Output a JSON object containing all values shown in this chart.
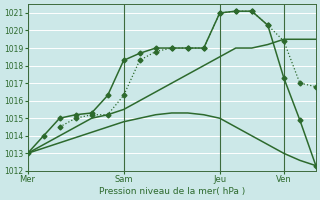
{
  "xlabel": "Pression niveau de la mer( hPa )",
  "bg_color": "#cce8e8",
  "grid_color": "#ffffff",
  "line_color": "#2d6a2d",
  "ylim": [
    1012,
    1021.5
  ],
  "ytick_min": 1012,
  "ytick_max": 1021,
  "day_labels": [
    "Mer",
    "Sam",
    "Jeu",
    "Ven"
  ],
  "day_positions": [
    0,
    24,
    48,
    64
  ],
  "xlim": [
    0,
    72
  ],
  "line1_x": [
    0,
    4,
    8,
    12,
    16,
    20,
    24,
    28,
    32,
    36,
    40,
    44,
    48,
    52,
    56,
    60,
    64,
    68,
    72
  ],
  "line1_y": [
    1013.0,
    1013.5,
    1014.0,
    1014.5,
    1015.0,
    1015.2,
    1015.5,
    1016.0,
    1016.5,
    1017.0,
    1017.5,
    1018.0,
    1018.5,
    1019.0,
    1019.0,
    1019.2,
    1019.5,
    1019.5,
    1019.5
  ],
  "line2_x": [
    0,
    4,
    8,
    12,
    16,
    20,
    24,
    28,
    32,
    36,
    40,
    44,
    48,
    52,
    56,
    60,
    64,
    68,
    72
  ],
  "line2_y": [
    1013.0,
    1013.3,
    1013.6,
    1013.9,
    1014.2,
    1014.5,
    1014.8,
    1015.0,
    1015.2,
    1015.3,
    1015.3,
    1015.2,
    1015.0,
    1014.5,
    1014.0,
    1013.5,
    1013.0,
    1012.6,
    1012.3
  ],
  "line3_x": [
    8,
    12,
    16,
    20,
    24,
    28,
    32,
    36,
    40,
    44,
    48,
    52,
    56,
    60,
    64,
    68,
    72
  ],
  "line3_y": [
    1014.5,
    1015.0,
    1015.2,
    1015.2,
    1016.3,
    1018.3,
    1018.8,
    1019.0,
    1019.0,
    1019.0,
    1021.0,
    1021.1,
    1021.1,
    1020.3,
    1019.4,
    1017.0,
    1016.8
  ],
  "line3_marker_x": [
    8,
    12,
    16,
    20,
    24,
    28,
    32,
    36,
    40,
    44,
    48,
    52,
    56,
    60,
    64,
    68,
    72
  ],
  "line3_marker_y": [
    1014.5,
    1015.0,
    1015.2,
    1015.2,
    1016.3,
    1018.3,
    1018.8,
    1019.0,
    1019.0,
    1019.0,
    1021.0,
    1021.1,
    1021.1,
    1020.3,
    1019.4,
    1017.0,
    1016.8
  ],
  "line4_x": [
    0,
    4,
    8,
    12,
    16,
    20,
    24,
    28,
    32,
    36,
    40,
    44,
    48,
    52,
    56,
    60,
    64,
    68,
    72
  ],
  "line4_y": [
    1013.0,
    1014.0,
    1015.0,
    1015.2,
    1015.3,
    1016.3,
    1018.3,
    1018.7,
    1019.0,
    1019.0,
    1019.0,
    1019.0,
    1021.0,
    1021.1,
    1021.1,
    1020.3,
    1017.3,
    1014.9,
    1012.3
  ]
}
